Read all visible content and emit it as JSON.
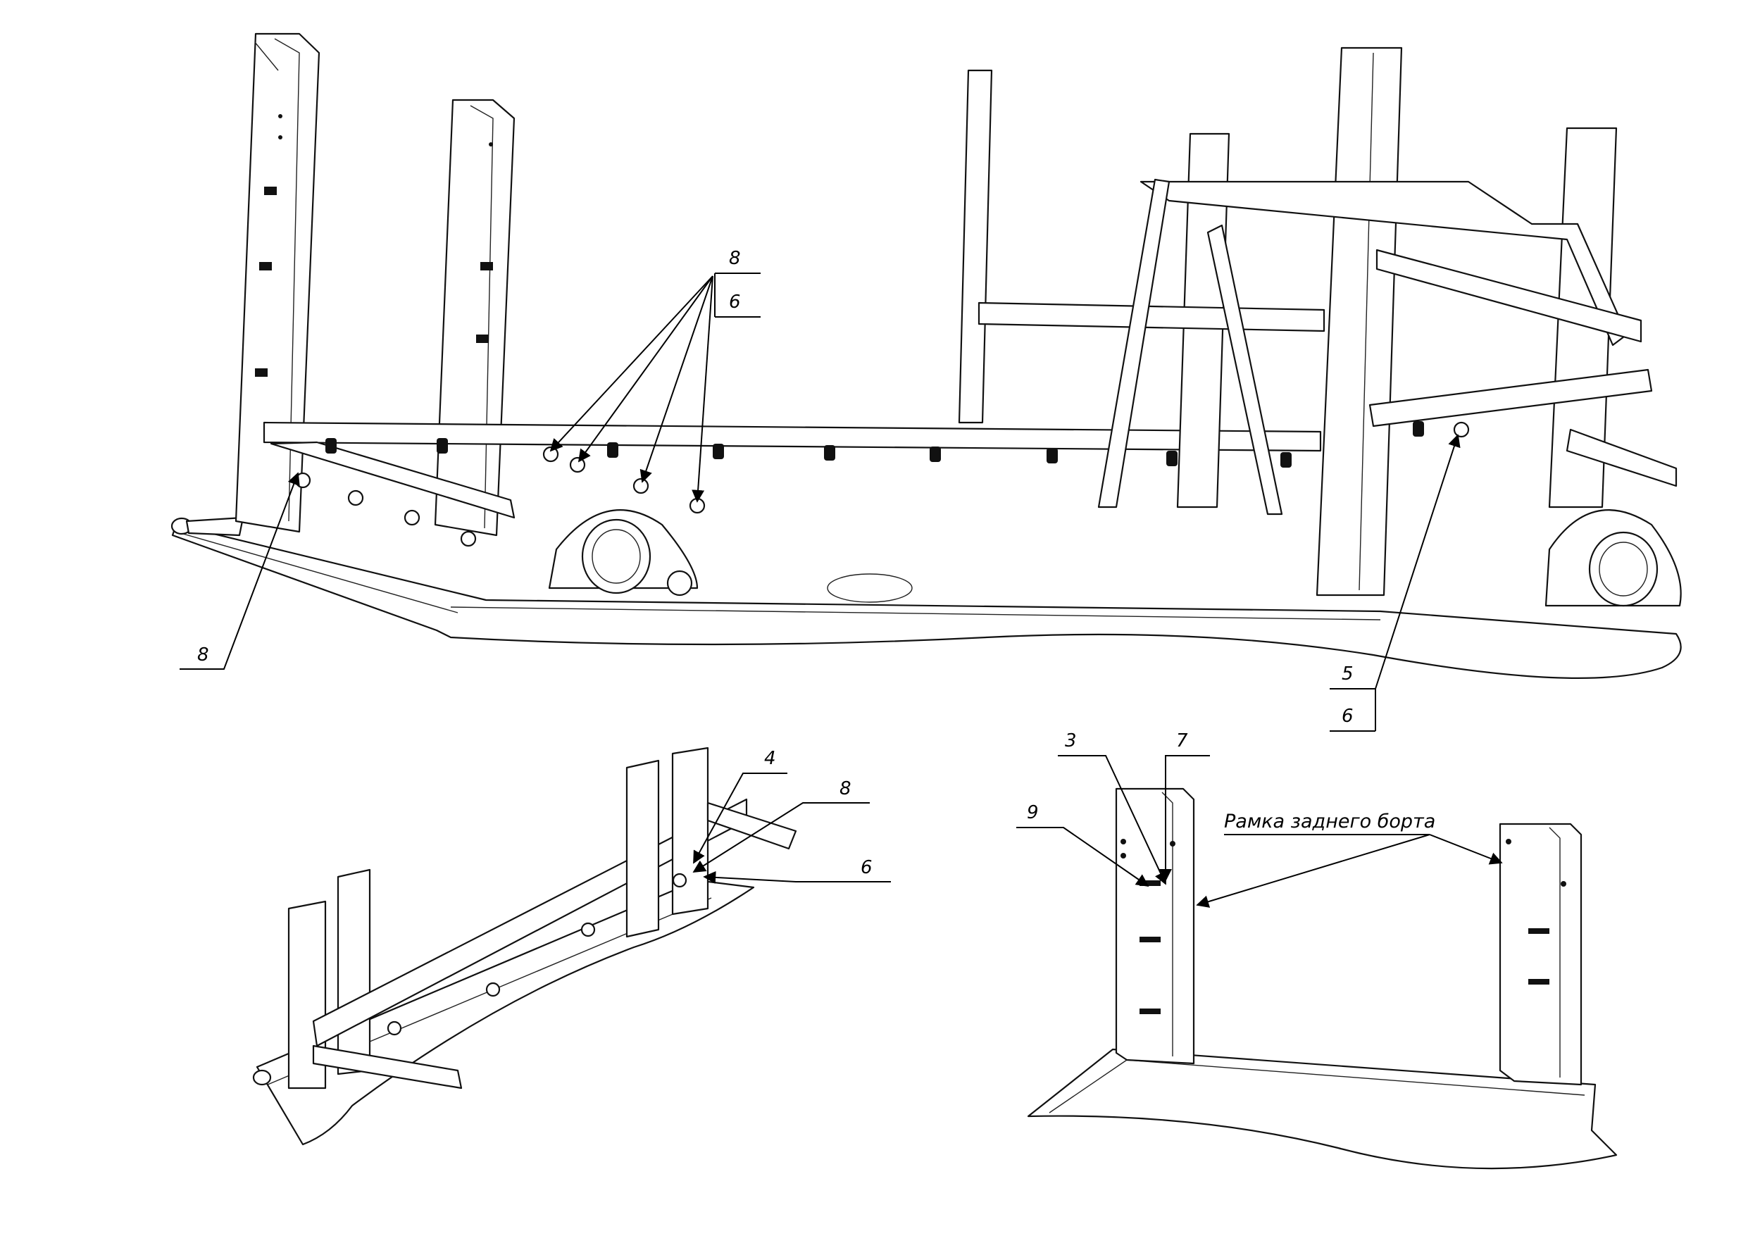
{
  "callouts": {
    "top_left_8": "8",
    "top_mid_8": "8",
    "top_mid_6": "6",
    "top_right_5": "5",
    "top_right_6": "6",
    "bl_4": "4",
    "bl_8": "8",
    "bl_6": "6",
    "br_3": "3",
    "br_7": "7",
    "br_9": "9"
  },
  "caption": "Рамка заднего борта"
}
